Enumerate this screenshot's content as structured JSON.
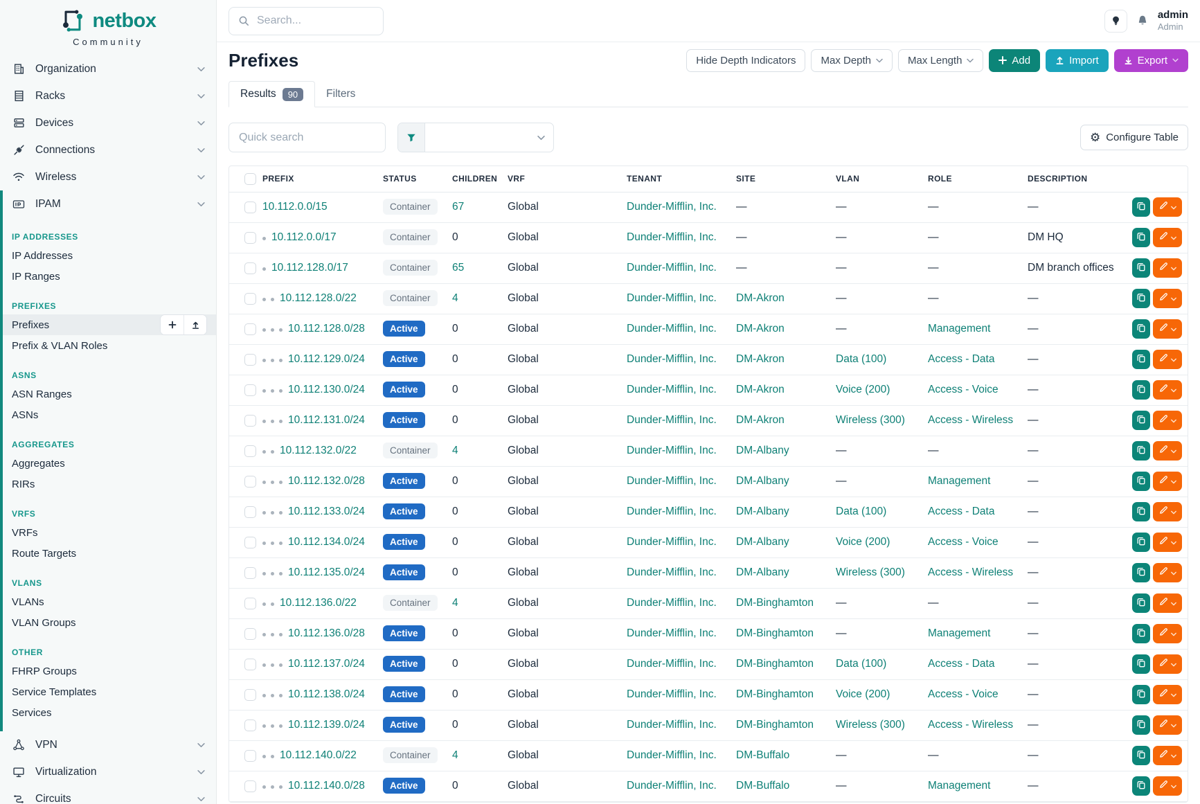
{
  "brand": {
    "name": "netbox",
    "subtitle": "Community"
  },
  "topbar": {
    "search_placeholder": "Search...",
    "user": {
      "name": "admin",
      "role": "Admin"
    }
  },
  "sidebar": {
    "menu_top": [
      {
        "label": "Organization",
        "icon": "building-icon"
      },
      {
        "label": "Racks",
        "icon": "rack-icon"
      },
      {
        "label": "Devices",
        "icon": "server-icon"
      },
      {
        "label": "Connections",
        "icon": "plug-icon"
      },
      {
        "label": "Wireless",
        "icon": "wifi-icon"
      },
      {
        "label": "IPAM",
        "icon": "ipam-icon",
        "expanded": true
      }
    ],
    "groups": [
      {
        "header": "IP ADDRESSES",
        "items": [
          {
            "label": "IP Addresses"
          },
          {
            "label": "IP Ranges"
          }
        ]
      },
      {
        "header": "PREFIXES",
        "items": [
          {
            "label": "Prefixes",
            "active": true,
            "buttons": [
              "add",
              "import"
            ]
          },
          {
            "label": "Prefix & VLAN Roles"
          }
        ]
      },
      {
        "header": "ASNS",
        "items": [
          {
            "label": "ASN Ranges"
          },
          {
            "label": "ASNs"
          }
        ]
      },
      {
        "header": "AGGREGATES",
        "items": [
          {
            "label": "Aggregates"
          },
          {
            "label": "RIRs"
          }
        ]
      },
      {
        "header": "VRFS",
        "items": [
          {
            "label": "VRFs"
          },
          {
            "label": "Route Targets"
          }
        ]
      },
      {
        "header": "VLANS",
        "items": [
          {
            "label": "VLANs"
          },
          {
            "label": "VLAN Groups"
          }
        ]
      },
      {
        "header": "OTHER",
        "items": [
          {
            "label": "FHRP Groups"
          },
          {
            "label": "Service Templates"
          },
          {
            "label": "Services"
          }
        ]
      }
    ],
    "menu_bottom": [
      {
        "label": "VPN",
        "icon": "vpn-icon"
      },
      {
        "label": "Virtualization",
        "icon": "monitor-icon"
      },
      {
        "label": "Circuits",
        "icon": "circuit-icon"
      }
    ]
  },
  "page": {
    "title": "Prefixes",
    "toolbar": {
      "hide_depth": "Hide Depth Indicators",
      "max_depth": "Max Depth",
      "max_length": "Max Length",
      "add": "Add",
      "import": "Import",
      "export": "Export"
    }
  },
  "tabs": {
    "results": "Results",
    "results_count": "90",
    "filters": "Filters"
  },
  "controls": {
    "quick_search_placeholder": "Quick search",
    "configure": "Configure Table"
  },
  "colors": {
    "brand_teal": "#0e8a80",
    "link_teal": "#0e8076",
    "active_badge_blue": "#206bc4",
    "add_button": "#0c8578",
    "import_button": "#1aa4bc",
    "export_button": "#b140cf",
    "edit_button_orange": "#f76707"
  },
  "table": {
    "columns": [
      "PREFIX",
      "STATUS",
      "CHILDREN",
      "VRF",
      "TENANT",
      "SITE",
      "VLAN",
      "ROLE",
      "DESCRIPTION"
    ],
    "rows": [
      {
        "depth": 0,
        "prefix": "10.112.0.0/15",
        "status": "Container",
        "children": "67",
        "children_link": true,
        "vrf": "Global",
        "tenant": "Dunder-Mifflin, Inc.",
        "site": "—",
        "vlan": "—",
        "role": "—",
        "description": "—"
      },
      {
        "depth": 1,
        "prefix": "10.112.0.0/17",
        "status": "Container",
        "children": "0",
        "children_link": false,
        "vrf": "Global",
        "tenant": "Dunder-Mifflin, Inc.",
        "site": "—",
        "vlan": "—",
        "role": "—",
        "description": "DM HQ"
      },
      {
        "depth": 1,
        "prefix": "10.112.128.0/17",
        "status": "Container",
        "children": "65",
        "children_link": true,
        "vrf": "Global",
        "tenant": "Dunder-Mifflin, Inc.",
        "site": "—",
        "vlan": "—",
        "role": "—",
        "description": "DM branch offices"
      },
      {
        "depth": 2,
        "prefix": "10.112.128.0/22",
        "status": "Container",
        "children": "4",
        "children_link": true,
        "vrf": "Global",
        "tenant": "Dunder-Mifflin, Inc.",
        "site": "DM-Akron",
        "vlan": "—",
        "role": "—",
        "description": "—"
      },
      {
        "depth": 3,
        "prefix": "10.112.128.0/28",
        "status": "Active",
        "children": "0",
        "children_link": false,
        "vrf": "Global",
        "tenant": "Dunder-Mifflin, Inc.",
        "site": "DM-Akron",
        "vlan": "—",
        "role": "Management",
        "description": "—"
      },
      {
        "depth": 3,
        "prefix": "10.112.129.0/24",
        "status": "Active",
        "children": "0",
        "children_link": false,
        "vrf": "Global",
        "tenant": "Dunder-Mifflin, Inc.",
        "site": "DM-Akron",
        "vlan": "Data (100)",
        "role": "Access - Data",
        "description": "—"
      },
      {
        "depth": 3,
        "prefix": "10.112.130.0/24",
        "status": "Active",
        "children": "0",
        "children_link": false,
        "vrf": "Global",
        "tenant": "Dunder-Mifflin, Inc.",
        "site": "DM-Akron",
        "vlan": "Voice (200)",
        "role": "Access - Voice",
        "description": "—"
      },
      {
        "depth": 3,
        "prefix": "10.112.131.0/24",
        "status": "Active",
        "children": "0",
        "children_link": false,
        "vrf": "Global",
        "tenant": "Dunder-Mifflin, Inc.",
        "site": "DM-Akron",
        "vlan": "Wireless (300)",
        "role": "Access - Wireless",
        "description": "—"
      },
      {
        "depth": 2,
        "prefix": "10.112.132.0/22",
        "status": "Container",
        "children": "4",
        "children_link": true,
        "vrf": "Global",
        "tenant": "Dunder-Mifflin, Inc.",
        "site": "DM-Albany",
        "vlan": "—",
        "role": "—",
        "description": "—"
      },
      {
        "depth": 3,
        "prefix": "10.112.132.0/28",
        "status": "Active",
        "children": "0",
        "children_link": false,
        "vrf": "Global",
        "tenant": "Dunder-Mifflin, Inc.",
        "site": "DM-Albany",
        "vlan": "—",
        "role": "Management",
        "description": "—"
      },
      {
        "depth": 3,
        "prefix": "10.112.133.0/24",
        "status": "Active",
        "children": "0",
        "children_link": false,
        "vrf": "Global",
        "tenant": "Dunder-Mifflin, Inc.",
        "site": "DM-Albany",
        "vlan": "Data (100)",
        "role": "Access - Data",
        "description": "—"
      },
      {
        "depth": 3,
        "prefix": "10.112.134.0/24",
        "status": "Active",
        "children": "0",
        "children_link": false,
        "vrf": "Global",
        "tenant": "Dunder-Mifflin, Inc.",
        "site": "DM-Albany",
        "vlan": "Voice (200)",
        "role": "Access - Voice",
        "description": "—"
      },
      {
        "depth": 3,
        "prefix": "10.112.135.0/24",
        "status": "Active",
        "children": "0",
        "children_link": false,
        "vrf": "Global",
        "tenant": "Dunder-Mifflin, Inc.",
        "site": "DM-Albany",
        "vlan": "Wireless (300)",
        "role": "Access - Wireless",
        "description": "—"
      },
      {
        "depth": 2,
        "prefix": "10.112.136.0/22",
        "status": "Container",
        "children": "4",
        "children_link": true,
        "vrf": "Global",
        "tenant": "Dunder-Mifflin, Inc.",
        "site": "DM-Binghamton",
        "vlan": "—",
        "role": "—",
        "description": "—"
      },
      {
        "depth": 3,
        "prefix": "10.112.136.0/28",
        "status": "Active",
        "children": "0",
        "children_link": false,
        "vrf": "Global",
        "tenant": "Dunder-Mifflin, Inc.",
        "site": "DM-Binghamton",
        "vlan": "—",
        "role": "Management",
        "description": "—"
      },
      {
        "depth": 3,
        "prefix": "10.112.137.0/24",
        "status": "Active",
        "children": "0",
        "children_link": false,
        "vrf": "Global",
        "tenant": "Dunder-Mifflin, Inc.",
        "site": "DM-Binghamton",
        "vlan": "Data (100)",
        "role": "Access - Data",
        "description": "—"
      },
      {
        "depth": 3,
        "prefix": "10.112.138.0/24",
        "status": "Active",
        "children": "0",
        "children_link": false,
        "vrf": "Global",
        "tenant": "Dunder-Mifflin, Inc.",
        "site": "DM-Binghamton",
        "vlan": "Voice (200)",
        "role": "Access - Voice",
        "description": "—"
      },
      {
        "depth": 3,
        "prefix": "10.112.139.0/24",
        "status": "Active",
        "children": "0",
        "children_link": false,
        "vrf": "Global",
        "tenant": "Dunder-Mifflin, Inc.",
        "site": "DM-Binghamton",
        "vlan": "Wireless (300)",
        "role": "Access - Wireless",
        "description": "—"
      },
      {
        "depth": 2,
        "prefix": "10.112.140.0/22",
        "status": "Container",
        "children": "4",
        "children_link": true,
        "vrf": "Global",
        "tenant": "Dunder-Mifflin, Inc.",
        "site": "DM-Buffalo",
        "vlan": "—",
        "role": "—",
        "description": "—"
      },
      {
        "depth": 3,
        "prefix": "10.112.140.0/28",
        "status": "Active",
        "children": "0",
        "children_link": false,
        "vrf": "Global",
        "tenant": "Dunder-Mifflin, Inc.",
        "site": "DM-Buffalo",
        "vlan": "—",
        "role": "Management",
        "description": "—"
      }
    ]
  }
}
